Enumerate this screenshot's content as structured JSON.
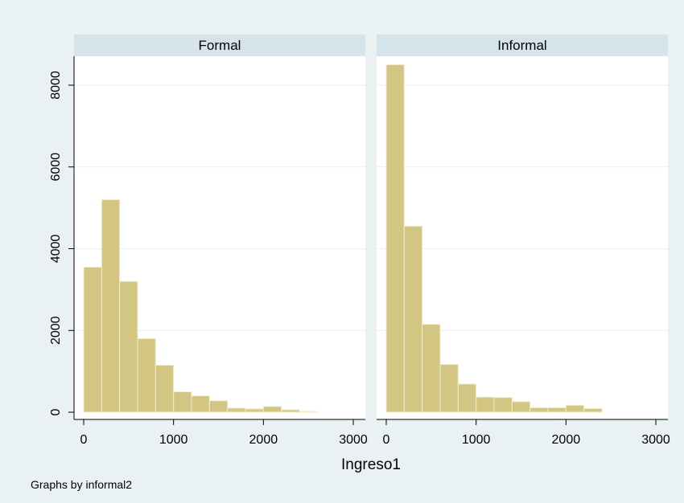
{
  "colors": {
    "outer_background": "#eaf1f3",
    "plot_background": "#ffffff",
    "strip_background": "#d5e3eb",
    "bar_fill": "#d2c682",
    "bar_stroke": "#f2edd0",
    "grid": "#e8eef1",
    "axis": "#000000",
    "text": "#000000"
  },
  "note": "Graphs by informal2",
  "chart_data": {
    "type": "bar",
    "subtype": "histogram",
    "xlabel": "Ingreso1",
    "ylabel": "",
    "xlim": [
      0,
      3000
    ],
    "ylim": [
      0,
      8600
    ],
    "x_ticks": [
      "0",
      "1000",
      "2000",
      "3000"
    ],
    "y_ticks": [
      "0",
      "2000",
      "4000",
      "6000",
      "8000"
    ],
    "bin_edges": [
      0,
      200,
      400,
      600,
      800,
      1000,
      1200,
      1400,
      1600,
      1800,
      2000,
      2200,
      2400,
      2600
    ],
    "panels": [
      {
        "title": "Formal",
        "values": [
          3550,
          5200,
          3200,
          1800,
          1150,
          500,
          400,
          280,
          100,
          80,
          140,
          60,
          20
        ]
      },
      {
        "title": "Informal",
        "values": [
          8500,
          4550,
          2150,
          1170,
          690,
          370,
          360,
          260,
          110,
          110,
          170,
          90,
          0
        ]
      }
    ]
  }
}
